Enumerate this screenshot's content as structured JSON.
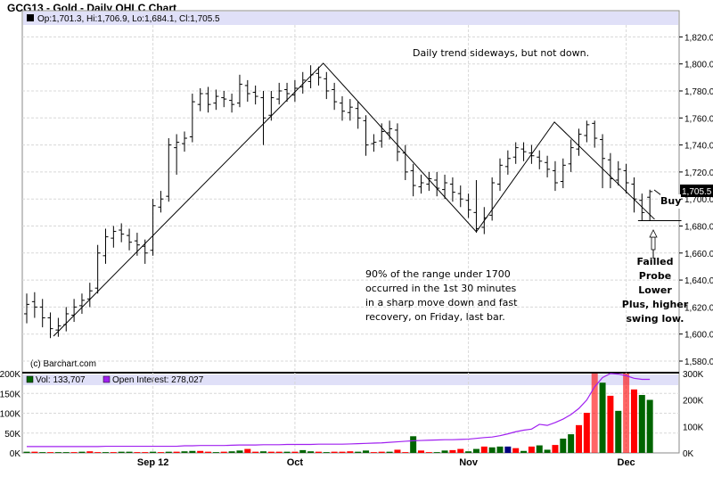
{
  "title": "GCG13 - Gold - Daily OHLC Chart",
  "legend_price": "Op:1,701.3, Hi:1,706.9, Lo:1,684.1, Cl:1,705.5",
  "legend_vol": "Vol: 133,707",
  "legend_oi": "Open Interest: 278,027",
  "credit": "(c) Barchart.com",
  "last_price_label": "1,705.5",
  "annotations": {
    "top": "Daily trend sideways, but not down.",
    "middle": [
      "90% of the range under 1700",
      "occurred in the 1st 30 minutes",
      "in a sharp move down and fast",
      "recovery, on Friday, last bar."
    ],
    "buy": "Buy",
    "right": [
      "Failled",
      "Probe",
      "Lower",
      "Plus, higher",
      "swing low."
    ]
  },
  "colors": {
    "up_volume": "#006400",
    "down_volume": "#ff0000",
    "unchanged_volume": "#000080",
    "open_interest": "#a020f0",
    "legend_band": "#e0e0f8",
    "price_bar": "#000000"
  },
  "chart_data": [
    {
      "type": "ohlc",
      "title": "GCG13 - Gold - Daily OHLC Chart",
      "y_ticks": [
        "1,580.0",
        "1,600.0",
        "1,620.0",
        "1,640.0",
        "1,660.0",
        "1,680.0",
        "1,700.0",
        "1,720.0",
        "1,740.0",
        "1,760.0",
        "1,780.0",
        "1,800.0",
        "1,820.0"
      ],
      "ylim": [
        1580,
        1839
      ],
      "x_ticks": [
        {
          "label": "Sep 12",
          "bar": 16
        },
        {
          "label": "Oct",
          "bar": 34
        },
        {
          "label": "Nov",
          "bar": 56
        },
        {
          "label": "Dec",
          "bar": 76
        }
      ],
      "grid": true,
      "open": [
        1615,
        1624,
        1620,
        1612,
        1603,
        1607,
        1614,
        1621,
        1626,
        1634,
        1658,
        1671,
        1677,
        1673,
        1669,
        1665,
        1662,
        1694,
        1702,
        1738,
        1741,
        1746,
        1770,
        1778,
        1771,
        1775,
        1773,
        1771,
        1784,
        1779,
        1775,
        1762,
        1774,
        1781,
        1777,
        1783,
        1787,
        1793,
        1789,
        1781,
        1771,
        1764,
        1767,
        1758,
        1741,
        1743,
        1749,
        1751,
        1734,
        1721,
        1709,
        1711,
        1714,
        1707,
        1711,
        1704,
        1699,
        1690,
        1679,
        1688,
        1711,
        1724,
        1731,
        1737,
        1734,
        1731,
        1727,
        1721,
        1713,
        1726,
        1737,
        1747,
        1756,
        1744,
        1729,
        1714,
        1721,
        1711,
        1699,
        1701.3
      ],
      "high": [
        1630,
        1631,
        1626,
        1616,
        1612,
        1620,
        1626,
        1630,
        1638,
        1666,
        1678,
        1680,
        1682,
        1678,
        1675,
        1670,
        1700,
        1706,
        1745,
        1748,
        1750,
        1778,
        1782,
        1783,
        1781,
        1780,
        1778,
        1792,
        1788,
        1784,
        1780,
        1780,
        1786,
        1786,
        1788,
        1794,
        1799,
        1798,
        1794,
        1786,
        1776,
        1774,
        1772,
        1762,
        1748,
        1756,
        1758,
        1756,
        1740,
        1726,
        1718,
        1720,
        1720,
        1718,
        1716,
        1710,
        1704,
        1714,
        1694,
        1716,
        1730,
        1736,
        1742,
        1742,
        1740,
        1736,
        1732,
        1728,
        1730,
        1744,
        1752,
        1758,
        1758,
        1748,
        1734,
        1728,
        1726,
        1716,
        1704,
        1706.9
      ],
      "low": [
        1608,
        1612,
        1605,
        1597,
        1598,
        1602,
        1609,
        1615,
        1620,
        1630,
        1652,
        1664,
        1668,
        1662,
        1658,
        1652,
        1658,
        1690,
        1698,
        1718,
        1735,
        1742,
        1765,
        1764,
        1766,
        1768,
        1764,
        1768,
        1772,
        1770,
        1740,
        1758,
        1770,
        1772,
        1772,
        1778,
        1782,
        1784,
        1774,
        1766,
        1758,
        1758,
        1752,
        1732,
        1735,
        1738,
        1744,
        1728,
        1714,
        1702,
        1704,
        1706,
        1702,
        1700,
        1698,
        1694,
        1686,
        1675,
        1674,
        1684,
        1706,
        1718,
        1726,
        1728,
        1726,
        1722,
        1716,
        1706,
        1708,
        1720,
        1732,
        1742,
        1738,
        1708,
        1708,
        1710,
        1704,
        1690,
        1684,
        1684.1
      ],
      "close": [
        1622,
        1620,
        1612,
        1604,
        1606,
        1615,
        1620,
        1625,
        1632,
        1660,
        1672,
        1676,
        1674,
        1668,
        1666,
        1660,
        1695,
        1700,
        1740,
        1742,
        1745,
        1772,
        1778,
        1770,
        1776,
        1774,
        1770,
        1785,
        1778,
        1776,
        1760,
        1775,
        1780,
        1778,
        1782,
        1788,
        1792,
        1790,
        1780,
        1772,
        1765,
        1768,
        1760,
        1740,
        1742,
        1750,
        1752,
        1735,
        1720,
        1710,
        1712,
        1715,
        1708,
        1712,
        1705,
        1700,
        1692,
        1678,
        1686,
        1712,
        1725,
        1730,
        1738,
        1735,
        1732,
        1728,
        1722,
        1712,
        1725,
        1738,
        1748,
        1755,
        1745,
        1730,
        1715,
        1722,
        1712,
        1700,
        1690,
        1705.5
      ],
      "trendlines": [
        {
          "points": [
            [
              3.4,
              1598.5
            ],
            [
              37.6,
              1800.5
            ],
            [
              57,
              1675.7
            ],
            [
              66.9,
              1757
            ],
            [
              79.6,
              1685
            ]
          ]
        },
        {
          "points": [
            [
              77.5,
              1684
            ],
            [
              83,
              1684
            ]
          ]
        }
      ]
    },
    {
      "type": "bar+line",
      "y_ticks_left": [
        "0K",
        "50K",
        "100K",
        "150K",
        "200K"
      ],
      "y_ticks_right": [
        "0K",
        "100K",
        "200K",
        "300K"
      ],
      "ylim_volume": [
        0,
        200
      ],
      "ylim_open_interest": [
        0,
        300
      ],
      "units": "K",
      "series": [
        {
          "name": "Vol",
          "values": [
            3,
            3,
            2,
            2,
            2,
            2,
            2,
            3,
            4,
            2,
            2,
            2,
            3,
            3,
            2,
            2,
            3,
            2,
            3,
            3,
            4,
            5,
            5,
            3,
            2,
            3,
            4,
            6,
            10,
            3,
            4,
            3,
            3,
            3,
            3,
            7,
            4,
            3,
            2,
            3,
            3,
            4,
            3,
            6,
            2,
            3,
            3,
            8,
            2,
            42,
            6,
            2,
            2,
            6,
            7,
            10,
            4,
            10,
            16,
            14,
            16,
            16,
            12,
            5,
            16,
            19,
            8,
            20,
            36,
            47,
            70,
            101,
            220,
            177,
            144,
            106,
            240,
            160,
            146,
            133.7
          ],
          "direction": [
            "g",
            "r",
            "g",
            "r",
            "g",
            "g",
            "r",
            "g",
            "r",
            "r",
            "g",
            "r",
            "g",
            "g",
            "r",
            "r",
            "g",
            "r",
            "g",
            "r",
            "g",
            "g",
            "r",
            "r",
            "g",
            "r",
            "g",
            "g",
            "r",
            "r",
            "g",
            "r",
            "r",
            "g",
            "r",
            "g",
            "g",
            "r",
            "g",
            "r",
            "r",
            "r",
            "g",
            "g",
            "r",
            "r",
            "g",
            "r",
            "r",
            "g",
            "r",
            "r",
            "g",
            "g",
            "r",
            "r",
            "g",
            "g",
            "r",
            "g",
            "g",
            "b",
            "r",
            "g",
            "r",
            "g",
            "g",
            "r",
            "g",
            "g",
            "r",
            "r",
            "r",
            "g",
            "r",
            "g",
            "r",
            "r",
            "g",
            "g"
          ]
        },
        {
          "name": "Open Interest",
          "values": [
            24,
            24,
            24,
            24,
            24,
            24,
            24,
            24,
            24,
            24,
            25,
            25,
            25,
            25,
            25,
            25,
            25,
            25,
            25,
            25,
            27,
            27,
            28,
            28,
            28,
            28,
            29,
            30,
            30,
            30,
            31,
            31,
            31,
            32,
            32,
            32,
            32,
            33,
            33,
            33,
            33,
            34,
            35,
            36,
            37,
            38,
            40,
            42,
            44,
            46,
            47,
            48,
            49,
            50,
            50,
            51,
            52,
            55,
            58,
            60,
            65,
            72,
            80,
            86,
            90,
            108,
            104,
            115,
            128,
            145,
            168,
            200,
            250,
            285,
            300,
            298,
            292,
            282,
            278,
            278
          ]
        }
      ]
    }
  ]
}
